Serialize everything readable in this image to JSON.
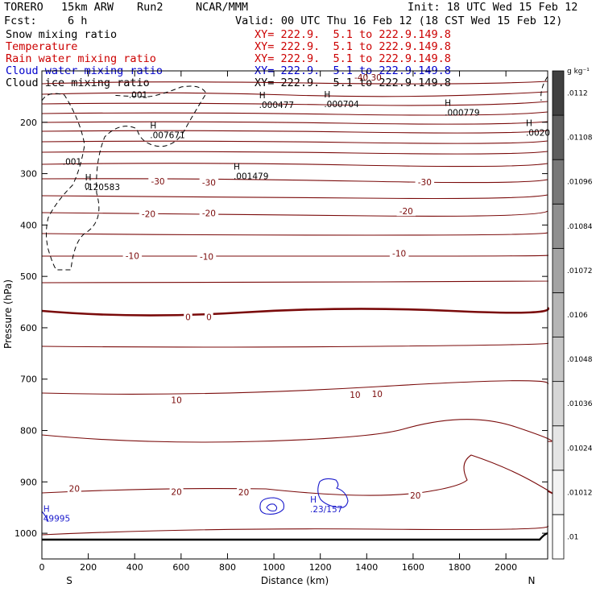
{
  "header": {
    "model": "TORERO",
    "resolution": "15km ARW",
    "run": "Run2",
    "center": "NCAR/MMM",
    "init": "Init: 18 UTC Wed 15 Feb 12",
    "fcst_label": "Fcst:",
    "fcst_value": "6 h",
    "valid": "Valid: 00 UTC Thu 16 Feb 12 (18 CST Wed 15 Feb 12)"
  },
  "fields": [
    {
      "name": "Snow mixing ratio",
      "xy": "XY= 222.9.  5.1 to 222.9.149.8",
      "color": "#000000",
      "xy_color": "#cc0000"
    },
    {
      "name": "Temperature",
      "xy": "XY= 222.9.  5.1 to 222.9.149.8",
      "color": "#cc0000",
      "xy_color": "#cc0000"
    },
    {
      "name": "Rain water mixing ratio",
      "xy": "XY= 222.9.  5.1 to 222.9.149.8",
      "color": "#cc0000",
      "xy_color": "#cc0000"
    },
    {
      "name": "Cloud water mixing ratio",
      "xy": "XY= 222.9.  5.1 to 222.9.149.8",
      "color": "#0000cc",
      "xy_color": "#0000cc"
    },
    {
      "name": "Cloud ice mixing ratio",
      "xy": "XY= 222.9.  5.1 to 222.9.149.8",
      "color": "#000000",
      "xy_color": "#000000"
    }
  ],
  "chart_data": {
    "type": "contour-cross-section",
    "xlabel": "Distance (km)",
    "ylabel": "Pressure (hPa)",
    "xlim": [
      0,
      2180
    ],
    "ylim": [
      1050,
      100
    ],
    "x_ticks": [
      0,
      200,
      400,
      600,
      800,
      1000,
      1200,
      1400,
      1600,
      1800,
      2000
    ],
    "y_ticks": [
      200,
      300,
      400,
      500,
      600,
      700,
      800,
      900,
      1000
    ],
    "left_end": "S",
    "right_end": "N",
    "temperature_contour_labels": [
      {
        "text": "-30",
        "x": 500,
        "p": 315
      },
      {
        "text": "-30",
        "x": 720,
        "p": 317
      },
      {
        "text": "-30",
        "x": 1650,
        "p": 316
      },
      {
        "text": "-20",
        "x": 460,
        "p": 378
      },
      {
        "text": "-20",
        "x": 720,
        "p": 377
      },
      {
        "text": "-20",
        "x": 1570,
        "p": 373
      },
      {
        "text": "-10",
        "x": 390,
        "p": 460
      },
      {
        "text": "-10",
        "x": 710,
        "p": 461
      },
      {
        "text": "-10",
        "x": 1540,
        "p": 455
      },
      {
        "text": "0",
        "x": 630,
        "p": 579
      },
      {
        "text": "0",
        "x": 720,
        "p": 579
      },
      {
        "text": "10",
        "x": 580,
        "p": 740
      },
      {
        "text": "10",
        "x": 1350,
        "p": 730
      },
      {
        "text": "10",
        "x": 1445,
        "p": 729
      },
      {
        "text": "20",
        "x": 140,
        "p": 913
      },
      {
        "text": "20",
        "x": 580,
        "p": 919
      },
      {
        "text": "20",
        "x": 870,
        "p": 920
      },
      {
        "text": "20",
        "x": 1610,
        "p": 926
      }
    ],
    "maxima": [
      {
        "marker": "H",
        "value": ".120583",
        "x": 200,
        "p": 313,
        "field": "snow"
      },
      {
        "marker": "H",
        "value": ".007671",
        "x": 480,
        "p": 212,
        "field": "snow"
      },
      {
        "marker": "H",
        "value": ".001479",
        "x": 840,
        "p": 292,
        "field": "snow"
      },
      {
        "marker": "H",
        "value": ".000477",
        "x": 950,
        "p": 153,
        "field": "snow"
      },
      {
        "marker": "H",
        "value": ".000704",
        "x": 1230,
        "p": 152,
        "field": "snow"
      },
      {
        "marker": "H",
        "value": ".000779",
        "x": 1750,
        "p": 168,
        "field": "snow"
      },
      {
        "marker": "H",
        "value": ".0020",
        "x": 2100,
        "p": 207,
        "field": "snow"
      },
      {
        "marker": "H",
        "value": ".23/157",
        "x": 1170,
        "p": 940,
        "field": "cloud_water"
      },
      {
        "marker": "H",
        "value": "49995",
        "x": 20,
        "p": 958,
        "field": "cloud_water"
      }
    ],
    "snow_contour_labels": [
      {
        "text": ".001",
        "x": 415,
        "p": 146
      },
      {
        "text": ".001",
        "x": 130,
        "p": 276
      },
      {
        "text": "0",
        "x": 195,
        "p": 324
      }
    ],
    "top_overlap_text": "-40.30",
    "colorbar": {
      "unit": "g kg⁻¹",
      "labels": [
        ".01",
        ".01012",
        ".01024",
        ".01036",
        ".01048",
        ".0106",
        ".01072",
        ".01084",
        ".01096",
        ".01108",
        ".0112"
      ],
      "colors": [
        "#ffffff",
        "#f3f3f3",
        "#e5e5e5",
        "#d6d6d6",
        "#c6c6c6",
        "#b5b5b5",
        "#a3a3a3",
        "#8f8f8f",
        "#787878",
        "#5e5e5e",
        "#404040"
      ]
    }
  }
}
